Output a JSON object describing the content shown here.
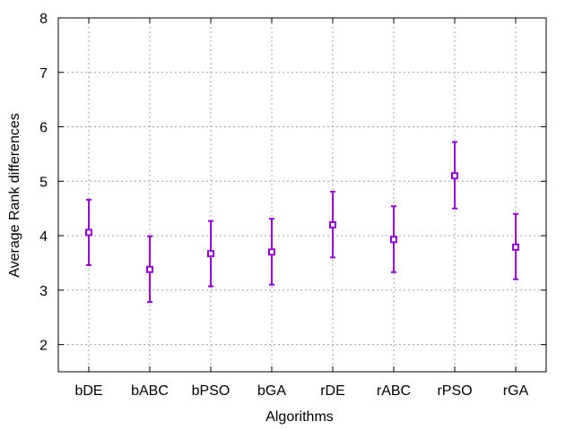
{
  "chart_data": {
    "type": "scatter",
    "xlabel": "Algorithms",
    "ylabel": "Average Rank differences",
    "categories": [
      "bDE",
      "bABC",
      "bPSO",
      "bGA",
      "rDE",
      "rABC",
      "rPSO",
      "rGA"
    ],
    "values": [
      4.06,
      3.38,
      3.67,
      3.7,
      4.2,
      3.93,
      5.1,
      3.79
    ],
    "error_low": [
      3.46,
      2.78,
      3.07,
      3.1,
      3.6,
      3.33,
      4.5,
      3.2
    ],
    "error_high": [
      4.66,
      3.99,
      4.27,
      4.31,
      4.81,
      4.54,
      5.72,
      4.4
    ],
    "ylim": [
      1.5,
      8
    ],
    "yticks": [
      "2",
      "3",
      "4",
      "5",
      "6",
      "7",
      "8"
    ],
    "grid": true,
    "marker": "open-square-with-errorbars",
    "color": "#9400d3"
  }
}
